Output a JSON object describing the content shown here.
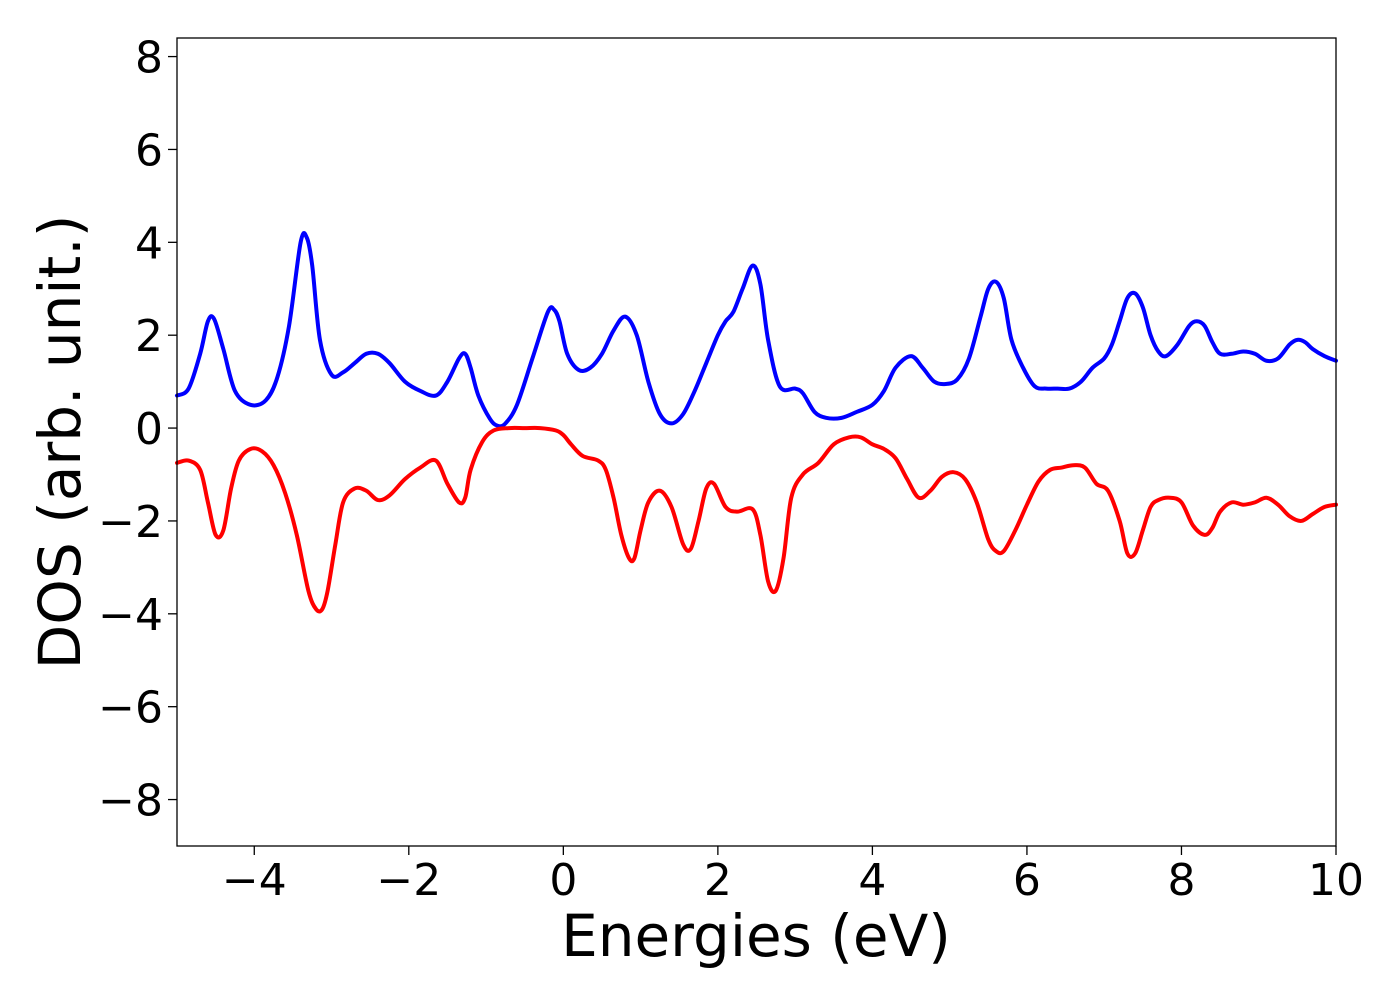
{
  "chart_data": {
    "type": "line",
    "title": "",
    "xlabel": "Energies (eV)",
    "ylabel": "DOS (arb. unit.)",
    "xlim": [
      -5,
      10
    ],
    "ylim": [
      -9,
      8.4
    ],
    "xticks": [
      -4,
      -2,
      0,
      2,
      4,
      6,
      8,
      10
    ],
    "xtick_labels": [
      "−4",
      "−2",
      "0",
      "2",
      "4",
      "6",
      "8",
      "10"
    ],
    "yticks": [
      -8,
      -6,
      -4,
      -2,
      0,
      2,
      4,
      6,
      8
    ],
    "ytick_labels": [
      "−8",
      "−6",
      "−4",
      "−2",
      "0",
      "2",
      "4",
      "6",
      "8"
    ],
    "grid": false,
    "legend": "none",
    "series": [
      {
        "color": "#0000ff",
        "x": [
          -5.0,
          -4.85,
          -4.7,
          -4.6,
          -4.52,
          -4.4,
          -4.25,
          -4.05,
          -3.85,
          -3.7,
          -3.55,
          -3.4,
          -3.32,
          -3.25,
          -3.15,
          -3.0,
          -2.85,
          -2.7,
          -2.55,
          -2.4,
          -2.25,
          -2.05,
          -1.85,
          -1.65,
          -1.5,
          -1.35,
          -1.27,
          -1.2,
          -1.1,
          -0.95,
          -0.85,
          -0.75,
          -0.6,
          -0.4,
          -0.2,
          -0.12,
          -0.05,
          0.05,
          0.2,
          0.35,
          0.5,
          0.65,
          0.8,
          0.95,
          1.1,
          1.25,
          1.4,
          1.55,
          1.7,
          1.85,
          2.0,
          2.1,
          2.2,
          2.32,
          2.45,
          2.55,
          2.65,
          2.8,
          3.0,
          3.1,
          3.25,
          3.4,
          3.6,
          3.8,
          4.0,
          4.15,
          4.3,
          4.5,
          4.65,
          4.8,
          4.95,
          5.1,
          5.25,
          5.4,
          5.5,
          5.6,
          5.7,
          5.8,
          5.95,
          6.1,
          6.25,
          6.4,
          6.55,
          6.7,
          6.85,
          7.0,
          7.1,
          7.2,
          7.3,
          7.4,
          7.5,
          7.6,
          7.7,
          7.8,
          7.95,
          8.1,
          8.2,
          8.3,
          8.4,
          8.5,
          8.65,
          8.8,
          8.95,
          9.1,
          9.25,
          9.4,
          9.5,
          9.6,
          9.7,
          9.85,
          10.0
        ],
        "y": [
          0.7,
          0.85,
          1.6,
          2.3,
          2.35,
          1.7,
          0.8,
          0.5,
          0.6,
          1.1,
          2.2,
          4.0,
          4.1,
          3.5,
          1.9,
          1.15,
          1.2,
          1.4,
          1.6,
          1.6,
          1.4,
          1.0,
          0.8,
          0.7,
          1.0,
          1.5,
          1.6,
          1.3,
          0.7,
          0.2,
          0.05,
          0.1,
          0.5,
          1.5,
          2.5,
          2.55,
          2.3,
          1.6,
          1.25,
          1.3,
          1.6,
          2.1,
          2.4,
          2.0,
          1.0,
          0.3,
          0.1,
          0.3,
          0.8,
          1.4,
          2.0,
          2.3,
          2.5,
          3.0,
          3.5,
          3.1,
          1.9,
          0.9,
          0.85,
          0.75,
          0.35,
          0.22,
          0.22,
          0.35,
          0.5,
          0.8,
          1.3,
          1.55,
          1.3,
          1.0,
          0.95,
          1.05,
          1.5,
          2.4,
          3.0,
          3.15,
          2.8,
          1.9,
          1.3,
          0.9,
          0.85,
          0.85,
          0.85,
          1.0,
          1.3,
          1.5,
          1.8,
          2.3,
          2.8,
          2.9,
          2.6,
          2.0,
          1.65,
          1.55,
          1.8,
          2.2,
          2.3,
          2.2,
          1.85,
          1.6,
          1.6,
          1.65,
          1.6,
          1.45,
          1.5,
          1.8,
          1.9,
          1.85,
          1.7,
          1.55,
          1.45
        ]
      },
      {
        "color": "#ff0000",
        "x": [
          -5.0,
          -4.85,
          -4.7,
          -4.6,
          -4.5,
          -4.4,
          -4.3,
          -4.2,
          -4.05,
          -3.9,
          -3.75,
          -3.6,
          -3.45,
          -3.3,
          -3.2,
          -3.12,
          -3.05,
          -2.95,
          -2.85,
          -2.7,
          -2.55,
          -2.4,
          -2.25,
          -2.05,
          -1.85,
          -1.65,
          -1.5,
          -1.35,
          -1.27,
          -1.2,
          -1.05,
          -0.9,
          -0.7,
          -0.5,
          -0.3,
          -0.1,
          0.0,
          0.1,
          0.25,
          0.45,
          0.55,
          0.65,
          0.75,
          0.85,
          0.92,
          1.0,
          1.1,
          1.25,
          1.4,
          1.55,
          1.65,
          1.75,
          1.85,
          1.95,
          2.1,
          2.25,
          2.45,
          2.55,
          2.65,
          2.75,
          2.85,
          2.95,
          3.1,
          3.3,
          3.5,
          3.7,
          3.85,
          4.0,
          4.15,
          4.3,
          4.45,
          4.6,
          4.75,
          4.9,
          5.05,
          5.2,
          5.35,
          5.5,
          5.6,
          5.7,
          5.85,
          6.0,
          6.15,
          6.3,
          6.45,
          6.6,
          6.75,
          6.9,
          7.05,
          7.2,
          7.3,
          7.4,
          7.5,
          7.6,
          7.7,
          7.85,
          8.0,
          8.15,
          8.3,
          8.4,
          8.5,
          8.65,
          8.8,
          8.95,
          9.1,
          9.25,
          9.4,
          9.55,
          9.7,
          9.85,
          10.0
        ],
        "y": [
          -0.75,
          -0.7,
          -0.9,
          -1.6,
          -2.3,
          -2.2,
          -1.3,
          -0.7,
          -0.45,
          -0.5,
          -0.8,
          -1.4,
          -2.3,
          -3.5,
          -3.9,
          -3.9,
          -3.5,
          -2.5,
          -1.6,
          -1.3,
          -1.35,
          -1.55,
          -1.45,
          -1.1,
          -0.85,
          -0.7,
          -1.2,
          -1.6,
          -1.5,
          -0.9,
          -0.3,
          -0.05,
          0.0,
          0.0,
          0.0,
          -0.05,
          -0.15,
          -0.35,
          -0.6,
          -0.7,
          -0.9,
          -1.5,
          -2.3,
          -2.8,
          -2.8,
          -2.2,
          -1.6,
          -1.35,
          -1.7,
          -2.5,
          -2.6,
          -2.0,
          -1.3,
          -1.2,
          -1.7,
          -1.8,
          -1.75,
          -2.3,
          -3.3,
          -3.5,
          -2.8,
          -1.5,
          -1.0,
          -0.75,
          -0.35,
          -0.2,
          -0.2,
          -0.35,
          -0.45,
          -0.65,
          -1.1,
          -1.5,
          -1.35,
          -1.05,
          -0.95,
          -1.1,
          -1.6,
          -2.4,
          -2.65,
          -2.65,
          -2.2,
          -1.65,
          -1.15,
          -0.9,
          -0.85,
          -0.8,
          -0.85,
          -1.2,
          -1.35,
          -2.0,
          -2.7,
          -2.7,
          -2.2,
          -1.7,
          -1.55,
          -1.5,
          -1.6,
          -2.1,
          -2.3,
          -2.15,
          -1.8,
          -1.6,
          -1.65,
          -1.6,
          -1.5,
          -1.65,
          -1.9,
          -2.0,
          -1.85,
          -1.7,
          -1.65
        ]
      }
    ]
  }
}
